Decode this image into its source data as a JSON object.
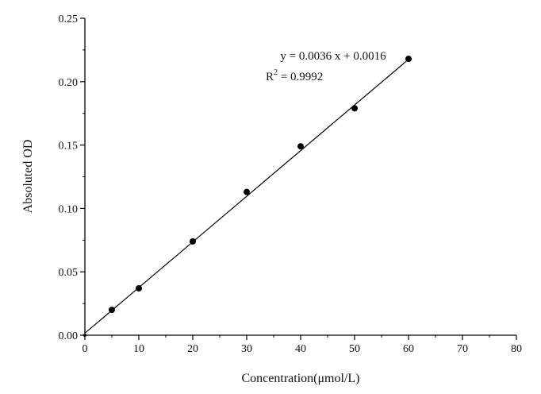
{
  "chart_data": {
    "type": "scatter",
    "title": "",
    "xlabel": "Concentration(μmol/L)",
    "ylabel": "Absoluted OD",
    "xlim": [
      0,
      80
    ],
    "ylim": [
      0,
      0.25
    ],
    "xticks": [
      "0",
      "10",
      "20",
      "30",
      "40",
      "50",
      "60",
      "70",
      "80"
    ],
    "yticks": [
      "0.00",
      "0.05",
      "0.10",
      "0.15",
      "0.20",
      "0.25"
    ],
    "grid": false,
    "series": [
      {
        "name": "data",
        "x": [
          0,
          5,
          10,
          20,
          30,
          40,
          50,
          60
        ],
        "y": [
          0.0,
          0.02,
          0.037,
          0.074,
          0.113,
          0.149,
          0.179,
          0.218
        ]
      }
    ],
    "fit": {
      "slope": 0.0036,
      "intercept": 0.0016,
      "x_range": [
        0,
        60
      ]
    },
    "annotations": {
      "equation": "y = 0.0036 x + 0.0016",
      "r2_label": "R",
      "r2_sup": "2",
      "r2_value": " = 0.9992"
    }
  }
}
